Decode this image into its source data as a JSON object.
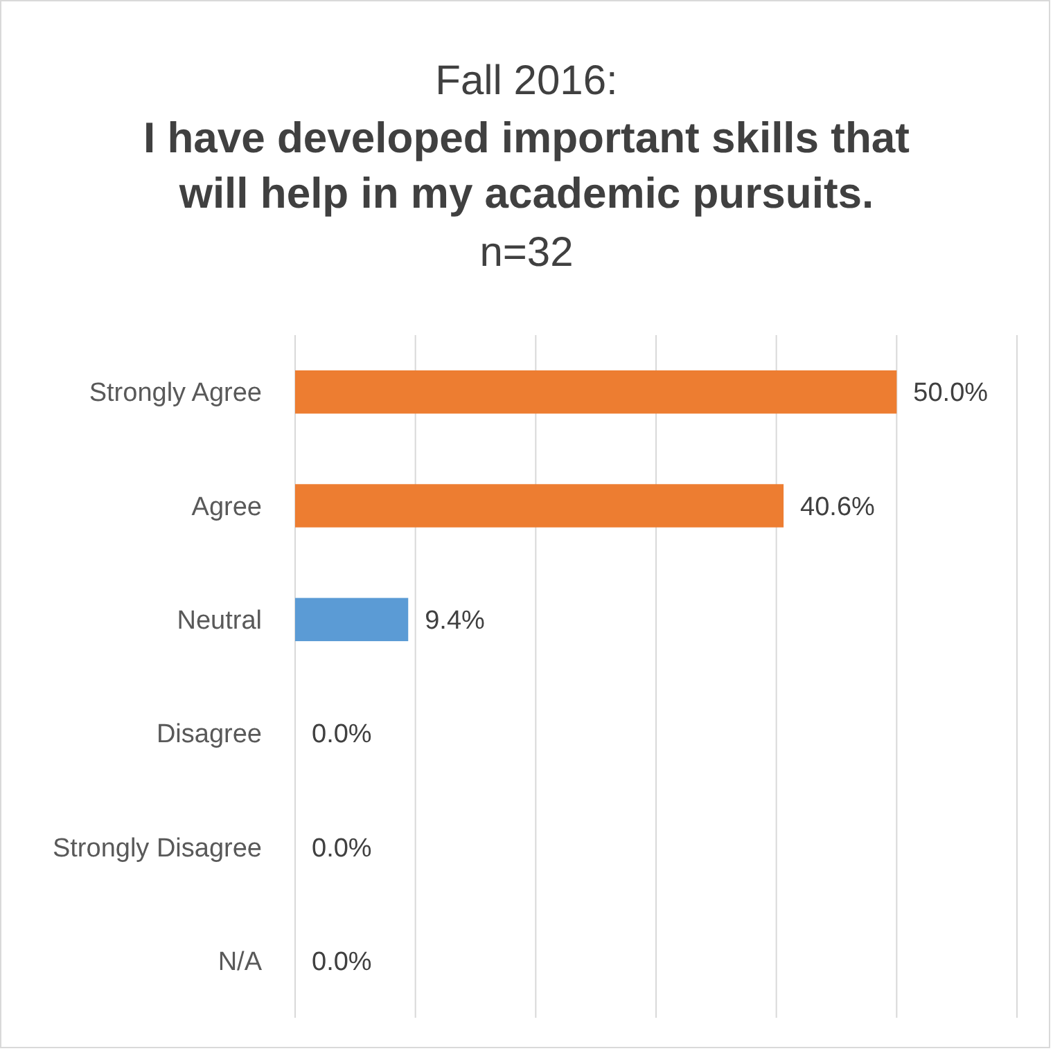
{
  "chart_data": {
    "type": "bar",
    "orientation": "horizontal",
    "title": "I have developed important skills that will help in my academic pursuits.",
    "subtitle": "n=32",
    "annotations": [
      "Fall 2016:"
    ],
    "categories": [
      "Strongly Agree",
      "Agree",
      "Neutral",
      "Disagree",
      "Strongly Disagree",
      "N/A"
    ],
    "values": [
      50.0,
      40.6,
      9.4,
      0,
      0,
      0
    ],
    "colors": [
      "#ed7d31",
      "#ed7d31",
      "#5b9bd5",
      "#5b9bd5",
      "#5b9bd5",
      "#5b9bd5"
    ],
    "value_labels": [
      "50.0%",
      "40.6%",
      "9.4%",
      "0.0%",
      "0.0%",
      "0.0%"
    ],
    "xlim": [
      0,
      60
    ],
    "xticks": [
      {
        "value": 0,
        "label": null
      },
      {
        "value": 10,
        "label": null
      },
      {
        "value": 20,
        "label": null
      },
      {
        "value": 30,
        "label": null
      },
      {
        "value": 40,
        "label": null
      },
      {
        "value": 50,
        "label": null
      },
      {
        "value": 60,
        "label": null
      }
    ],
    "grid": "x",
    "tick_labels": "y"
  }
}
